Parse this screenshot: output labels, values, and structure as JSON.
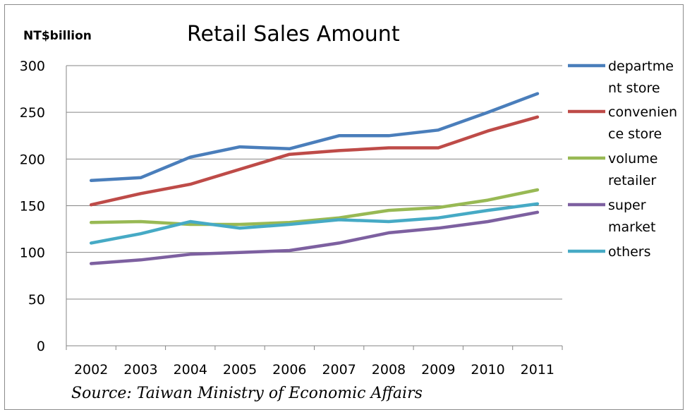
{
  "chart_data": {
    "type": "line",
    "title": "Retail Sales Amount",
    "ylabel": "NT$billion",
    "source": "Source: Taiwan Ministry of Economic Affairs",
    "ylim": [
      0,
      300
    ],
    "yticks": [
      0,
      50,
      100,
      150,
      200,
      250,
      300
    ],
    "grid": true,
    "legend_position": "right",
    "categories": [
      "2002",
      "2003",
      "2004",
      "2005",
      "2006",
      "2007",
      "2008",
      "2009",
      "2010",
      "2011"
    ],
    "series": [
      {
        "name": "department store",
        "legend_lines": [
          "departme",
          "nt store"
        ],
        "color": "#4a7ebb",
        "values": [
          177,
          180,
          202,
          213,
          211,
          225,
          225,
          231,
          250,
          270
        ]
      },
      {
        "name": "convenience store",
        "legend_lines": [
          "convenien",
          "ce store"
        ],
        "color": "#be4b48",
        "values": [
          151,
          163,
          173,
          189,
          205,
          209,
          212,
          212,
          230,
          245
        ]
      },
      {
        "name": "volume retailer",
        "legend_lines": [
          "volume",
          "retailer"
        ],
        "color": "#98b954",
        "values": [
          132,
          133,
          130,
          130,
          132,
          137,
          145,
          148,
          156,
          167
        ]
      },
      {
        "name": "super market",
        "legend_lines": [
          "super",
          "market"
        ],
        "color": "#7d60a0",
        "values": [
          88,
          92,
          98,
          100,
          102,
          110,
          121,
          126,
          133,
          143
        ]
      },
      {
        "name": "others",
        "legend_lines": [
          "others"
        ],
        "color": "#46aac5",
        "values": [
          110,
          120,
          133,
          126,
          130,
          135,
          133,
          137,
          145,
          152
        ]
      }
    ]
  }
}
